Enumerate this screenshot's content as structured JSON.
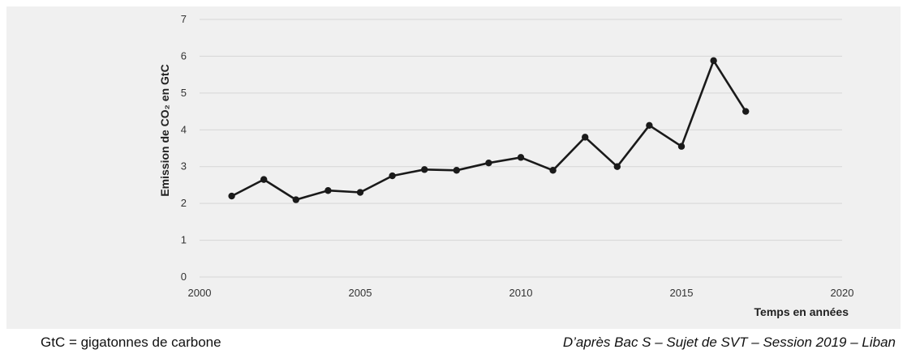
{
  "chart_data": {
    "type": "line",
    "xlabel": "Temps en années",
    "ylabel": "Emission de CO₂ en GtC",
    "xlim": [
      2000,
      2020
    ],
    "ylim": [
      0,
      7
    ],
    "x_ticks": [
      "2000",
      "2005",
      "2010",
      "2015",
      "2020"
    ],
    "y_ticks": [
      "0",
      "1",
      "2",
      "3",
      "4",
      "5",
      "6",
      "7"
    ],
    "grid": "horizontal",
    "series": [
      {
        "x": [
          2001,
          2002,
          2003,
          2004,
          2005,
          2006,
          2007,
          2008,
          2009,
          2010,
          2011,
          2012,
          2013,
          2014,
          2015,
          2016,
          2017
        ],
        "y": [
          2.2,
          2.65,
          2.1,
          2.35,
          2.3,
          2.75,
          2.92,
          2.9,
          3.1,
          3.25,
          2.9,
          3.8,
          3.0,
          4.12,
          3.55,
          5.88,
          4.5
        ]
      }
    ],
    "line_color": "#1a1a1a",
    "grid_color": "#d6d6d6",
    "background": "#f0f0f0"
  },
  "footer": {
    "legend_note": "GtC = gigatonnes de carbone",
    "source": "D’après Bac S – Sujet de SVT – Session 2019 – Liban"
  }
}
